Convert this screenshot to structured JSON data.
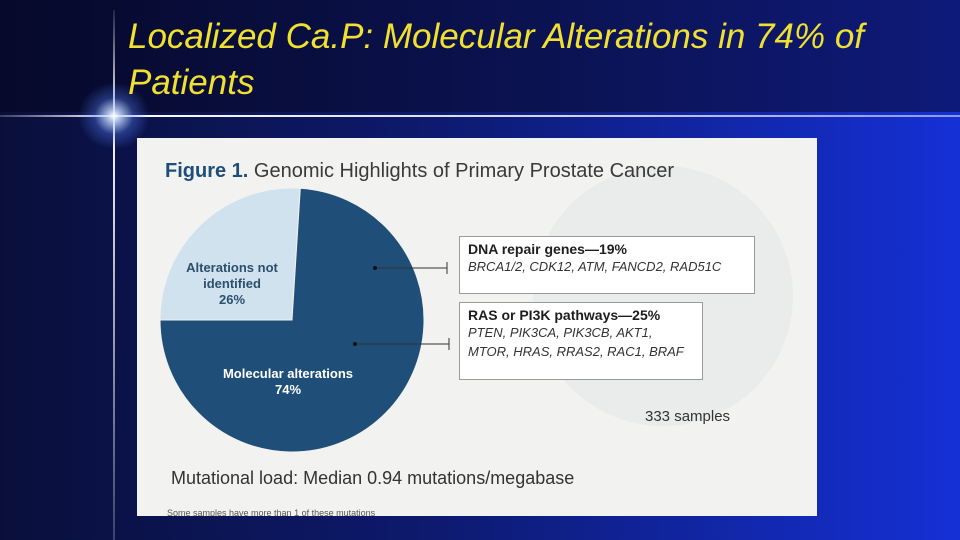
{
  "slide": {
    "title": "Localized Ca.P: Molecular Alterations in 74% of Patients"
  },
  "figure": {
    "label": "Figure 1.",
    "title": "Genomic Highlights of Primary Prostate Cancer",
    "samples": "333 samples",
    "mutational_load": "Mutational load: Median 0.94 mutations/megabase",
    "footnote": "Some samples have more than 1 of these mutations",
    "boxes": [
      {
        "head": "DNA repair genes—19%",
        "genes": [
          "BRCA1/2, CDK12, ATM, FANCD2, RAD51C"
        ]
      },
      {
        "head": "RAS or PI3K pathways—25%",
        "genes": [
          "PTEN, PIK3CA, PIK3CB, AKT1,",
          "MTOR, HRAS, RRAS2, RAC1, BRAF"
        ]
      }
    ]
  },
  "chart_data": {
    "type": "pie",
    "title": "Genomic Highlights of Primary Prostate Cancer",
    "slices": [
      {
        "label": "Alterations not identified",
        "value": 26,
        "display": "26%",
        "color": "#cfe2ee"
      },
      {
        "label": "Molecular alterations",
        "value": 74,
        "display": "74%",
        "color": "#1f4e78"
      }
    ]
  }
}
